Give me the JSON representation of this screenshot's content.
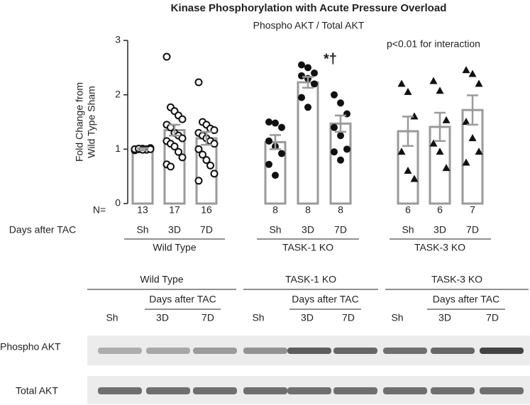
{
  "chart_data": {
    "type": "bar-scatter",
    "title": "Kinase Phosphorylation with Acute Pressure Overload",
    "subtitle": "Phospho AKT / Total AKT",
    "y_label": [
      "Fold Change from",
      "Wild Type Sham"
    ],
    "annotation": "p<0.01 for interaction",
    "significance": "*†",
    "n_label": "N=",
    "x_label": "Days after TAC",
    "ylim": [
      0,
      3
    ],
    "yticks": [
      0,
      1,
      2,
      3
    ],
    "bar_color": "#9a9a9a",
    "point_color": "#111111",
    "groups": [
      {
        "name": "Wild Type",
        "marker": "open-circle",
        "categories": [
          "Sh",
          "3D",
          "7D"
        ],
        "n": [
          13,
          17,
          16
        ],
        "values": [
          1.0,
          1.35,
          1.2
        ],
        "errors": [
          0.02,
          0.1,
          0.12
        ],
        "points": [
          [
            1.0,
            1.01,
            0.99,
            1.0,
            1.02,
            0.98,
            1.0,
            1.01,
            0.99,
            1.0,
            1.0,
            1.01,
            0.99
          ],
          [
            2.7,
            1.77,
            1.7,
            1.62,
            1.55,
            1.45,
            1.4,
            1.3,
            1.25,
            1.2,
            1.15,
            1.1,
            1.05,
            0.95,
            0.85,
            0.72,
            0.68
          ],
          [
            2.23,
            1.5,
            1.45,
            1.38,
            1.35,
            1.3,
            1.25,
            1.2,
            1.15,
            1.1,
            1.0,
            0.9,
            0.8,
            0.7,
            0.55,
            0.42
          ]
        ]
      },
      {
        "name": "TASK-1 KO",
        "marker": "filled-circle",
        "categories": [
          "Sh",
          "3D",
          "7D"
        ],
        "n": [
          8,
          8,
          8
        ],
        "values": [
          1.13,
          2.23,
          1.47
        ],
        "errors": [
          0.13,
          0.1,
          0.15
        ],
        "points": [
          [
            1.5,
            1.48,
            1.4,
            1.15,
            1.05,
            0.92,
            0.72,
            0.52
          ],
          [
            2.55,
            2.5,
            2.4,
            2.35,
            2.3,
            2.2,
            1.95,
            1.77
          ],
          [
            2.0,
            1.85,
            1.65,
            1.4,
            1.25,
            1.0,
            0.95,
            0.8
          ]
        ]
      },
      {
        "name": "TASK-3 KO",
        "marker": "triangle",
        "categories": [
          "Sh",
          "3D",
          "7D"
        ],
        "n": [
          6,
          6,
          7
        ],
        "values": [
          1.33,
          1.41,
          1.72
        ],
        "errors": [
          0.27,
          0.26,
          0.27
        ],
        "points": [
          [
            2.2,
            2.05,
            1.6,
            0.95,
            0.6,
            0.45
          ],
          [
            2.25,
            2.07,
            1.53,
            1.1,
            0.95,
            0.65
          ],
          [
            2.45,
            2.38,
            2.2,
            1.5,
            1.2,
            0.95,
            0.75
          ]
        ]
      }
    ]
  },
  "blot": {
    "groups": [
      "Wild Type",
      "TASK-1 KO",
      "TASK-3 KO"
    ],
    "subheader": "Days after TAC",
    "lanes": [
      "Sh",
      "3D",
      "7D",
      "Sh",
      "3D",
      "7D",
      "Sh",
      "3D",
      "7D"
    ],
    "rows": [
      "Phospho AKT",
      "Total AKT"
    ]
  }
}
